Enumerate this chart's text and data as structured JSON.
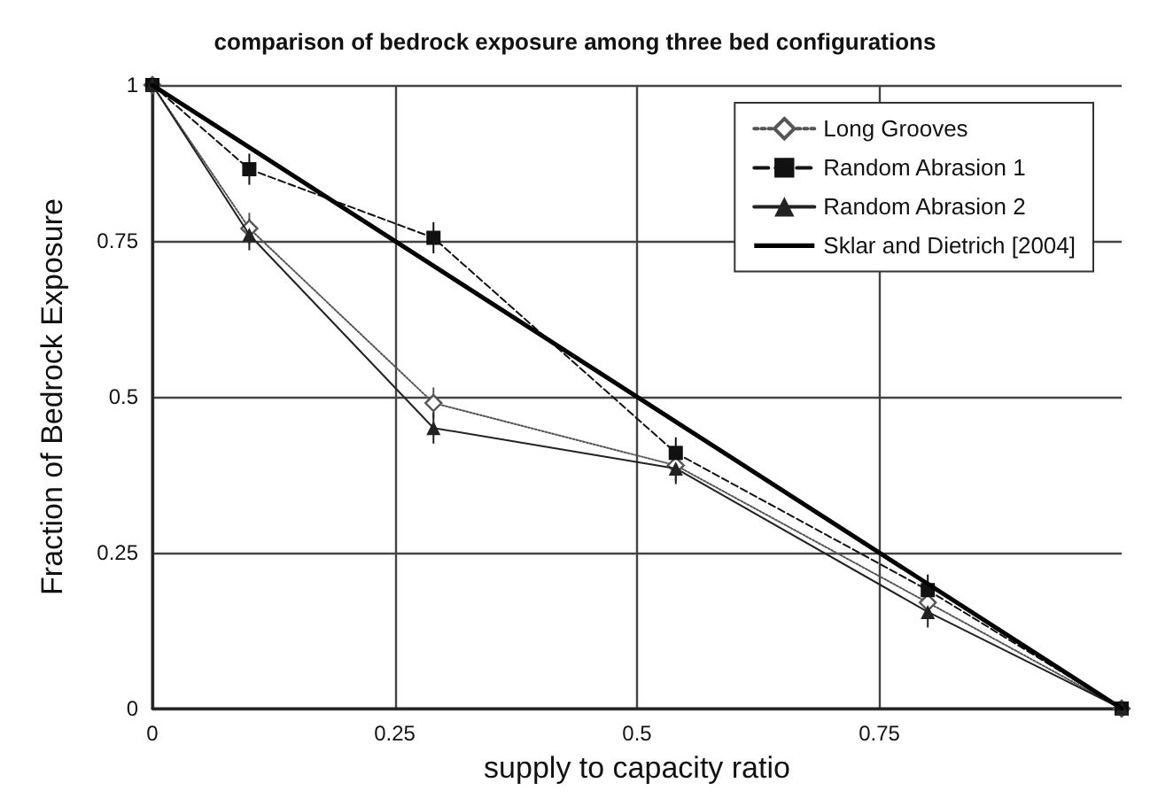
{
  "chart_data": {
    "type": "line",
    "title": "comparison of bedrock exposure among three bed configurations",
    "xlabel": "supply to capacity ratio",
    "ylabel": "Fraction of Bedrock Exposure",
    "xlim": [
      0,
      1
    ],
    "xticks": [
      0,
      0.25,
      0.5,
      0.75
    ],
    "ylim": [
      0,
      1
    ],
    "yticks": [
      0,
      0.25,
      0.5,
      0.75,
      1
    ],
    "grid": true,
    "legend": "top right",
    "series": [
      {
        "name": "Long Grooves",
        "color": "#555555",
        "marker": "diamond",
        "line_style": "dotted",
        "x": [
          0,
          0.1,
          0.29,
          0.54,
          0.8,
          1
        ],
        "values": [
          1,
          0.77,
          0.49,
          0.39,
          0.17,
          0
        ],
        "errors": [
          null,
          0.025,
          0.025,
          0.025,
          0.025,
          null
        ]
      },
      {
        "name": "Random Abrasion 1",
        "color": "#111111",
        "marker": "square",
        "line_style": "dashed",
        "x": [
          0,
          0.1,
          0.29,
          0.54,
          0.8,
          1
        ],
        "values": [
          1,
          0.865,
          0.755,
          0.41,
          0.19,
          0
        ],
        "errors": [
          null,
          0.025,
          0.025,
          0.025,
          0.025,
          null
        ]
      },
      {
        "name": "Random Abrasion 2",
        "color": "#222222",
        "marker": "triangle",
        "line_style": "solid",
        "x": [
          0,
          0.1,
          0.29,
          0.54,
          0.8,
          1
        ],
        "values": [
          1,
          0.76,
          0.45,
          0.385,
          0.155,
          0
        ],
        "errors": [
          null,
          0.025,
          0.025,
          0.025,
          0.025,
          null
        ]
      },
      {
        "name": "Sklar and Dietrich [2004]",
        "color": "#000000",
        "marker": "none",
        "line_style": "solid",
        "x": [
          0,
          1
        ],
        "values": [
          1,
          0
        ]
      }
    ]
  }
}
